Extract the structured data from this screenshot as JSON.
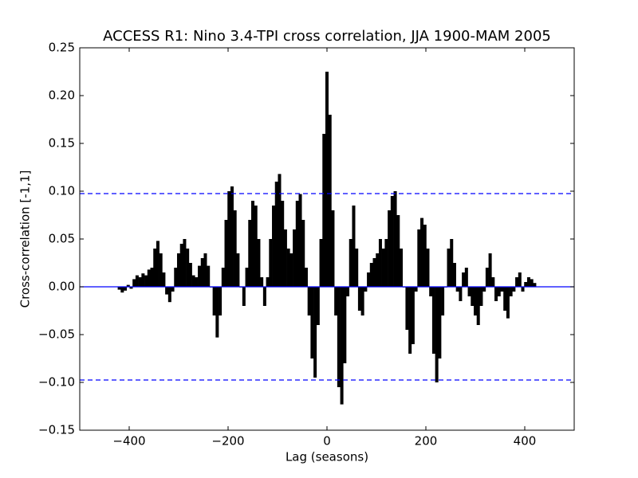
{
  "chart_data": {
    "type": "xcorr",
    "title": "ACCESS R1: Nino 3.4-TPI cross correlation, JJA 1900-MAM 2005",
    "x_label": "Lag (seasons)",
    "y_label": "Cross-correlation [-1,1]",
    "color": "#000000",
    "x": [
      -420,
      -414,
      -408,
      -402,
      -396,
      -390,
      -384,
      -378,
      -372,
      -366,
      -360,
      -354,
      -348,
      -342,
      -336,
      -330,
      -324,
      -318,
      -312,
      -306,
      -300,
      -294,
      -288,
      -282,
      -276,
      -270,
      -264,
      -258,
      -252,
      -246,
      -240,
      -234,
      -228,
      -222,
      -216,
      -210,
      -204,
      -198,
      -192,
      -186,
      -180,
      -174,
      -168,
      -162,
      -156,
      -150,
      -144,
      -138,
      -132,
      -126,
      -120,
      -114,
      -108,
      -102,
      -96,
      -90,
      -84,
      -78,
      -72,
      -66,
      -60,
      -54,
      -48,
      -42,
      -36,
      -30,
      -24,
      -18,
      -12,
      -6,
      0,
      6,
      12,
      18,
      24,
      30,
      36,
      42,
      48,
      54,
      60,
      66,
      72,
      78,
      84,
      90,
      96,
      102,
      108,
      114,
      120,
      126,
      132,
      138,
      144,
      150,
      156,
      162,
      168,
      174,
      180,
      186,
      192,
      198,
      204,
      210,
      216,
      222,
      228,
      234,
      240,
      246,
      252,
      258,
      264,
      270,
      276,
      282,
      288,
      294,
      300,
      306,
      312,
      318,
      324,
      330,
      336,
      342,
      348,
      354,
      360,
      366,
      372,
      378,
      384,
      390,
      396,
      402,
      408,
      414,
      420
    ],
    "values": [
      -0.003,
      -0.006,
      -0.004,
      0.002,
      -0.002,
      0.008,
      0.012,
      0.01,
      0.014,
      0.012,
      0.018,
      0.02,
      0.04,
      0.048,
      0.035,
      0.015,
      -0.008,
      -0.016,
      -0.005,
      0.02,
      0.035,
      0.045,
      0.05,
      0.04,
      0.025,
      0.012,
      0.01,
      0.022,
      0.03,
      0.035,
      0.022,
      0.0,
      -0.03,
      -0.053,
      -0.03,
      0.02,
      0.07,
      0.1,
      0.105,
      0.08,
      0.035,
      0.0,
      -0.02,
      0.02,
      0.07,
      0.09,
      0.085,
      0.05,
      0.01,
      -0.02,
      0.01,
      0.05,
      0.085,
      0.11,
      0.118,
      0.09,
      0.06,
      0.04,
      0.035,
      0.06,
      0.09,
      0.097,
      0.07,
      0.02,
      -0.03,
      -0.075,
      -0.095,
      -0.04,
      0.05,
      0.16,
      0.225,
      0.18,
      0.08,
      -0.03,
      -0.105,
      -0.123,
      -0.08,
      -0.01,
      0.05,
      0.085,
      0.04,
      -0.025,
      -0.03,
      -0.005,
      0.015,
      0.025,
      0.03,
      0.035,
      0.05,
      0.04,
      0.05,
      0.08,
      0.095,
      0.1,
      0.075,
      0.04,
      0.0,
      -0.045,
      -0.07,
      -0.06,
      -0.005,
      0.06,
      0.072,
      0.065,
      0.04,
      -0.01,
      -0.07,
      -0.1,
      -0.075,
      -0.03,
      0.0,
      0.04,
      0.05,
      0.025,
      -0.005,
      -0.015,
      0.015,
      0.02,
      -0.01,
      -0.02,
      -0.03,
      -0.04,
      -0.02,
      -0.005,
      0.02,
      0.035,
      0.01,
      -0.015,
      -0.01,
      -0.005,
      -0.025,
      -0.033,
      -0.01,
      -0.005,
      0.01,
      0.015,
      -0.005,
      0.005,
      0.01,
      0.008,
      0.004
    ],
    "hlines": [
      {
        "value": 0,
        "style": "solid"
      },
      {
        "value": 0.0975,
        "style": "dashed"
      },
      {
        "value": -0.0975,
        "style": "dashed"
      }
    ],
    "hline_color": "#0000ff",
    "xlim": [
      -500,
      500
    ],
    "xticks": [
      {
        "value": -400,
        "label": "−400"
      },
      {
        "value": -200,
        "label": "−200"
      },
      0,
      200,
      400
    ],
    "ylim": [
      -0.15,
      0.25
    ],
    "yticks": [
      {
        "value": -0.15,
        "label": "−0.15"
      },
      {
        "value": -0.1,
        "label": "−0.10"
      },
      {
        "value": -0.05,
        "label": "−0.05"
      },
      {
        "value": 0,
        "label": "0.00"
      },
      {
        "value": 0.05,
        "label": "0.05"
      },
      {
        "value": 0.1,
        "label": "0.10"
      },
      {
        "value": 0.15,
        "label": "0.15"
      },
      {
        "value": 0.2,
        "label": "0.20"
      },
      {
        "value": 0.25,
        "label": "0.25"
      }
    ]
  }
}
